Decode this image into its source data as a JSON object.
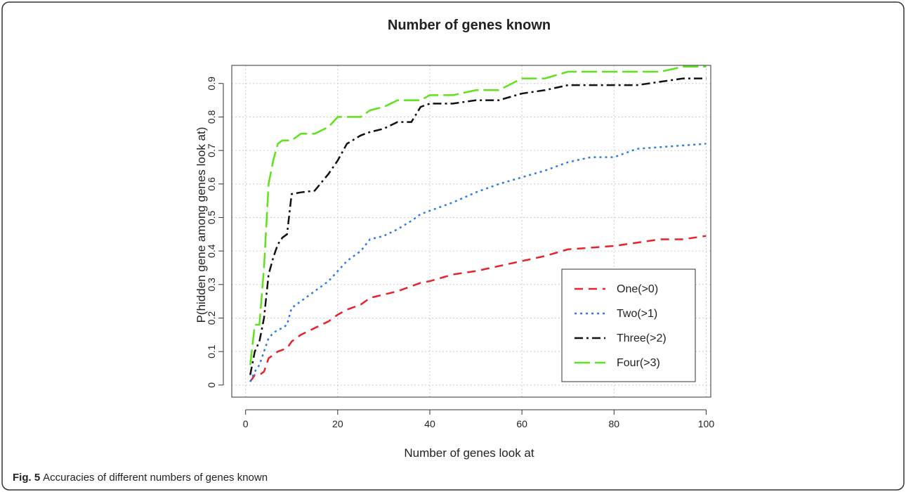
{
  "chart_data": {
    "type": "line",
    "title": "Number of genes known",
    "x_label": "Number of genes look at",
    "y_label": "P(hidden gene among genes look at)",
    "caption_label": "Fig. 5",
    "caption": "Accuracies of different numbers of genes known",
    "x": [
      1,
      2,
      3,
      4,
      5,
      6,
      7,
      8,
      9,
      10,
      12,
      15,
      18,
      20,
      22,
      25,
      27,
      30,
      33,
      36,
      38,
      40,
      45,
      50,
      55,
      60,
      65,
      70,
      75,
      80,
      85,
      90,
      95,
      100
    ],
    "series": [
      {
        "name": "One(>0)",
        "color": "#e8222b",
        "linestyle": "dashed",
        "values": [
          0.01,
          0.03,
          0.03,
          0.04,
          0.08,
          0.09,
          0.1,
          0.105,
          0.11,
          0.13,
          0.15,
          0.17,
          0.19,
          0.21,
          0.225,
          0.24,
          0.26,
          0.27,
          0.28,
          0.295,
          0.305,
          0.31,
          0.33,
          0.34,
          0.355,
          0.37,
          0.385,
          0.405,
          0.41,
          0.415,
          0.425,
          0.435,
          0.435,
          0.445
        ]
      },
      {
        "name": "Two(>1)",
        "color": "#2b7be8",
        "linestyle": "dotted",
        "values": [
          0.01,
          0.04,
          0.06,
          0.1,
          0.14,
          0.155,
          0.165,
          0.17,
          0.18,
          0.23,
          0.25,
          0.28,
          0.31,
          0.34,
          0.37,
          0.4,
          0.435,
          0.445,
          0.465,
          0.49,
          0.51,
          0.52,
          0.545,
          0.575,
          0.6,
          0.62,
          0.64,
          0.665,
          0.68,
          0.68,
          0.705,
          0.71,
          0.715,
          0.72
        ]
      },
      {
        "name": "Three(>2)",
        "color": "#111111",
        "linestyle": "dashdot",
        "values": [
          0.03,
          0.1,
          0.13,
          0.2,
          0.33,
          0.38,
          0.42,
          0.44,
          0.45,
          0.57,
          0.575,
          0.58,
          0.63,
          0.67,
          0.72,
          0.745,
          0.755,
          0.765,
          0.785,
          0.785,
          0.83,
          0.84,
          0.84,
          0.85,
          0.85,
          0.87,
          0.88,
          0.895,
          0.895,
          0.895,
          0.895,
          0.905,
          0.915,
          0.915
        ]
      },
      {
        "name": "Four(>3)",
        "color": "#5ee31b",
        "linestyle": "longdash",
        "values": [
          0.06,
          0.18,
          0.18,
          0.35,
          0.6,
          0.67,
          0.72,
          0.73,
          0.73,
          0.73,
          0.75,
          0.75,
          0.77,
          0.8,
          0.8,
          0.8,
          0.82,
          0.83,
          0.85,
          0.85,
          0.85,
          0.865,
          0.865,
          0.88,
          0.88,
          0.915,
          0.915,
          0.935,
          0.935,
          0.935,
          0.935,
          0.935,
          0.95,
          0.95
        ]
      }
    ],
    "xlim": [
      -3,
      101
    ],
    "ylim": [
      -0.036,
      0.954
    ],
    "xticks": [
      0,
      20,
      40,
      60,
      80,
      100
    ],
    "yticks": [
      0,
      0.1,
      0.2,
      0.3,
      0.4,
      0.5,
      0.6,
      0.7,
      0.8,
      0.9
    ],
    "grid": true,
    "legend": "bottom-right"
  }
}
